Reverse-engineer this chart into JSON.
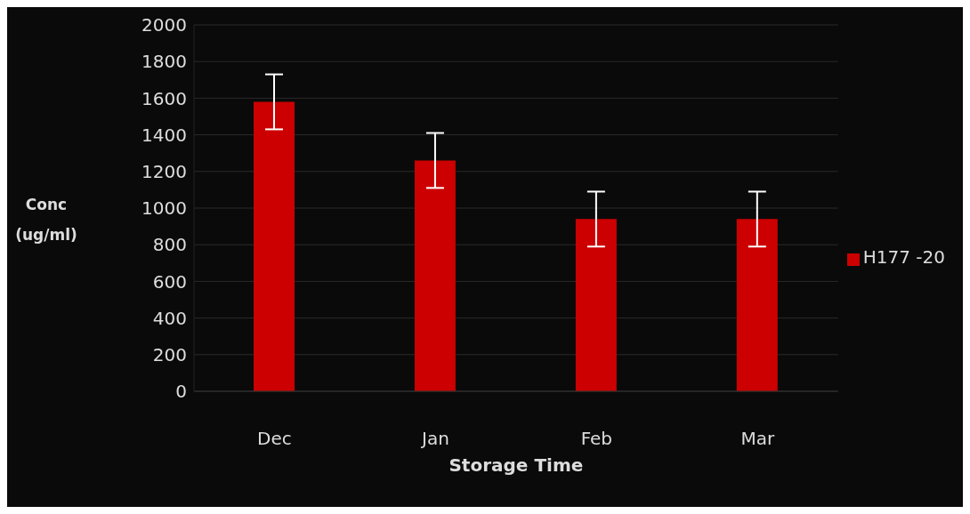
{
  "chart_data": {
    "type": "bar",
    "xlabel": "Storage Time",
    "ylabel": "Conc (ug/ml)",
    "categories": [
      "Dec",
      "Jan",
      "Feb",
      "Mar"
    ],
    "series": [
      {
        "name": "H177 -20",
        "color": "#cc0000",
        "values": [
          1580,
          1260,
          940,
          940
        ],
        "errors": [
          150,
          150,
          150,
          150
        ]
      }
    ],
    "ylim": [
      0,
      2000
    ],
    "yticks": [
      0,
      200,
      400,
      600,
      800,
      1000,
      1200,
      1400,
      1600,
      1800,
      2000
    ],
    "grid": "y",
    "legend": "right"
  }
}
